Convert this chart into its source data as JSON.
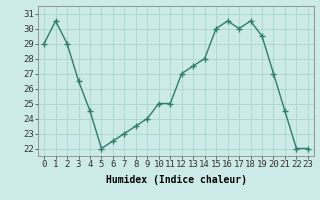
{
  "x": [
    0,
    1,
    2,
    3,
    4,
    5,
    6,
    7,
    8,
    9,
    10,
    11,
    12,
    13,
    14,
    15,
    16,
    17,
    18,
    19,
    20,
    21,
    22,
    23
  ],
  "y": [
    29.0,
    30.5,
    29.0,
    26.5,
    24.5,
    22.0,
    22.5,
    23.0,
    23.5,
    24.0,
    25.0,
    25.0,
    27.0,
    27.5,
    28.0,
    30.0,
    30.5,
    30.0,
    30.5,
    29.5,
    27.0,
    24.5,
    22.0,
    22.0
  ],
  "line_color": "#2e7d6e",
  "marker": "+",
  "marker_size": 4,
  "bg_color": "#cceae7",
  "grid_color": "#aad4d0",
  "xlabel": "Humidex (Indice chaleur)",
  "xlim": [
    -0.5,
    23.5
  ],
  "ylim": [
    21.5,
    31.5
  ],
  "yticks": [
    22,
    23,
    24,
    25,
    26,
    27,
    28,
    29,
    30,
    31
  ],
  "xticks": [
    0,
    1,
    2,
    3,
    4,
    5,
    6,
    7,
    8,
    9,
    10,
    11,
    12,
    13,
    14,
    15,
    16,
    17,
    18,
    19,
    20,
    21,
    22,
    23
  ],
  "xlabel_fontsize": 7,
  "tick_fontsize": 6.5,
  "line_width": 1.0
}
